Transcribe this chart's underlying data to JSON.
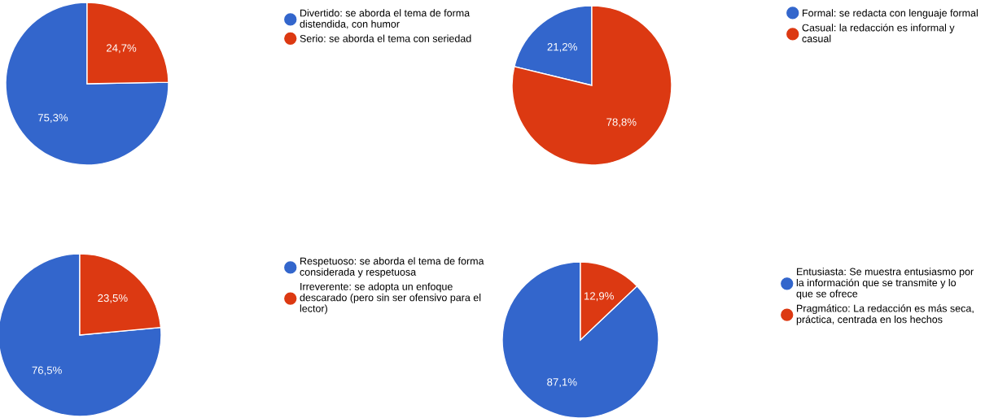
{
  "chart_data": [
    {
      "type": "pie",
      "categories": [
        "Divertido: se aborda el tema de forma distendida, con humor",
        "Serio: se aborda el tema con seriedad"
      ],
      "values": [
        75.3,
        24.7
      ],
      "colors": [
        "#3366cc",
        "#dc3912"
      ],
      "value_labels": [
        "75,3%",
        "24,7%"
      ],
      "legend": "right"
    },
    {
      "type": "pie",
      "categories": [
        "Formal: se redacta con lenguaje formal",
        "Casual: la redacción es informal y casual"
      ],
      "values": [
        21.2,
        78.8
      ],
      "colors": [
        "#3366cc",
        "#dc3912"
      ],
      "value_labels": [
        "21,2%",
        "78,8%"
      ],
      "legend": "right"
    },
    {
      "type": "pie",
      "categories": [
        "Respetuoso: se aborda el tema de forma considerada y respetuosa",
        "Irreverente: se adopta un enfoque descarado (pero sin ser ofensivo para el lector)"
      ],
      "values": [
        76.5,
        23.5
      ],
      "colors": [
        "#3366cc",
        "#dc3912"
      ],
      "value_labels": [
        "76,5%",
        "23,5%"
      ],
      "legend": "right"
    },
    {
      "type": "pie",
      "categories": [
        "Entusiasta: Se muestra entusiasmo por la información que se transmite y lo que se ofrece",
        "Pragmático: La redacción es más seca, práctica, centrada en los hechos"
      ],
      "values": [
        87.1,
        12.9
      ],
      "colors": [
        "#3366cc",
        "#dc3912"
      ],
      "value_labels": [
        "87,1%",
        "12,9%"
      ],
      "legend": "right"
    }
  ]
}
